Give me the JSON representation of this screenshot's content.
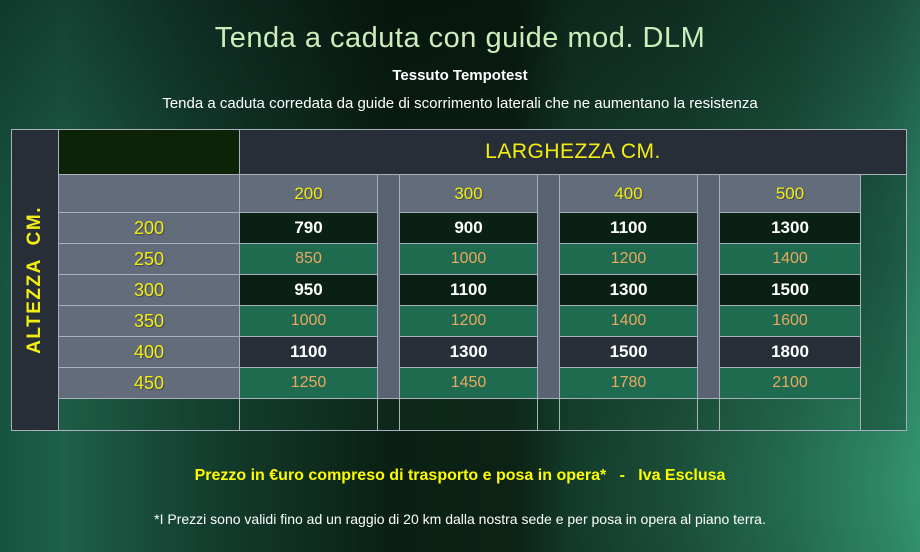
{
  "header": {
    "title": "Tenda a caduta con guide mod. DLM",
    "subtitle": "Tessuto Tempotest",
    "description": "Tenda a caduta corredata da guide di scorrimento laterali che ne aumentano la resistenza"
  },
  "table": {
    "col_axis_label": "LARGHEZZA CM.",
    "row_axis_label": "ALTEZZA  CM.",
    "col_headers": [
      "200",
      "300",
      "400",
      "500"
    ],
    "rows": [
      {
        "label": "200",
        "values": [
          "790",
          "900",
          "1100",
          "1300"
        ],
        "variant": "dark"
      },
      {
        "label": "250",
        "values": [
          "850",
          "1000",
          "1200",
          "1400"
        ],
        "variant": "green"
      },
      {
        "label": "300",
        "values": [
          "950",
          "1100",
          "1300",
          "1500"
        ],
        "variant": "dark"
      },
      {
        "label": "350",
        "values": [
          "1000",
          "1200",
          "1400",
          "1600"
        ],
        "variant": "green"
      },
      {
        "label": "400",
        "values": [
          "1100",
          "1300",
          "1500",
          "1800"
        ],
        "variant": "slate"
      },
      {
        "label": "450",
        "values": [
          "1250",
          "1450",
          "1780",
          "2100"
        ],
        "variant": "green"
      }
    ]
  },
  "footer": {
    "price_note": "Prezzo in €uro compreso di trasporto e posa in opera*   -   Iva Esclusa",
    "disclaimer": "*I Prezzi sono validi fino ad un raggio di 20 km dalla nostra sede e per posa in opera al piano terra."
  },
  "colors": {
    "accent_yellow": "#f2ee11",
    "footer_yellow": "#fdfd00",
    "title_green": "#cbeebb",
    "cell_dark_green": "#0b2014",
    "cell_mid_green": "#1f6b50",
    "cell_slate": "#272e38",
    "cell_gray": "#636c7a",
    "orange_text": "#e9a85e",
    "border_gray": "#a9b0b9"
  }
}
